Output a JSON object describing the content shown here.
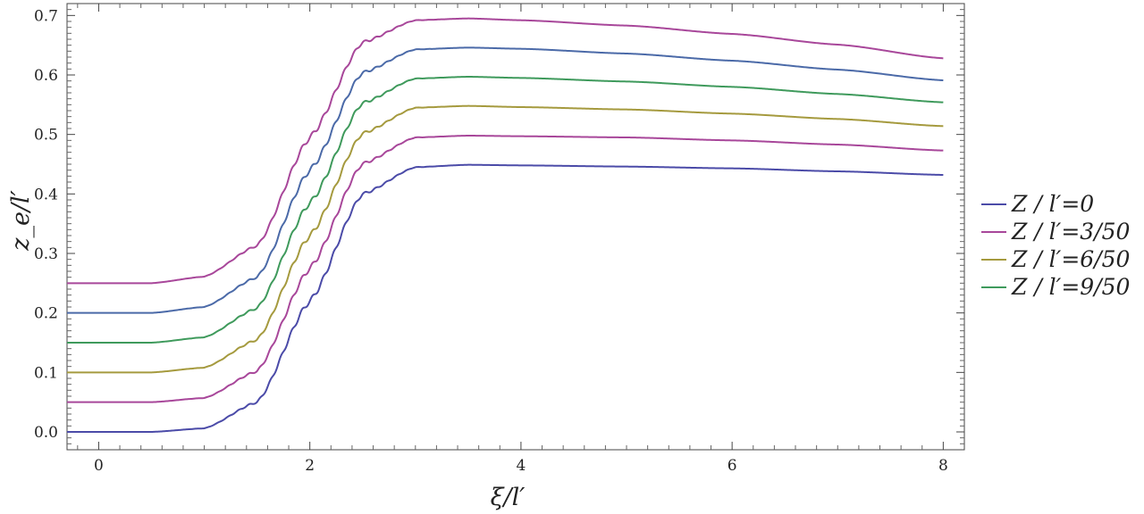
{
  "chart_data": {
    "type": "line",
    "title": "",
    "xlabel": "ξ/l′",
    "ylabel": "z_e/l′",
    "xlim": [
      -0.3,
      8.2
    ],
    "ylim": [
      -0.03,
      0.72
    ],
    "xticks": [
      0,
      2,
      4,
      6,
      8
    ],
    "xtick_labels": [
      "0",
      "2",
      "4",
      "6",
      "8"
    ],
    "yticks": [
      0.0,
      0.1,
      0.2,
      0.3,
      0.4,
      0.5,
      0.6,
      0.7
    ],
    "ytick_labels": [
      "0.0",
      "0.1",
      "0.2",
      "0.3",
      "0.4",
      "0.5",
      "0.6",
      "0.7"
    ],
    "grid": false,
    "legend_position": "right",
    "legend": [
      {
        "label": "Z / l′=0",
        "color": "#4b4ba8"
      },
      {
        "label": "Z / l′=3/50",
        "color": "#a8479a"
      },
      {
        "label": "Z / l′=6/50",
        "color": "#a59a3e"
      },
      {
        "label": "Z / l′=9/50",
        "color": "#3f9a5c"
      }
    ],
    "series": [
      {
        "color": "#4b4ba8",
        "x": [
          -0.3,
          0.5,
          1.0,
          1.5,
          2.0,
          2.5,
          3.0,
          3.5,
          4.0,
          5.0,
          6.0,
          7.0,
          8.0
        ],
        "y": [
          0.0,
          0.0,
          0.006,
          0.05,
          0.22,
          0.4,
          0.445,
          0.449,
          0.448,
          0.446,
          0.443,
          0.438,
          0.432
        ]
      },
      {
        "color": "#a8479a",
        "x": [
          -0.3,
          0.5,
          1.0,
          1.5,
          2.0,
          2.5,
          3.0,
          3.5,
          4.0,
          5.0,
          6.0,
          7.0,
          8.0
        ],
        "y": [
          0.05,
          0.05,
          0.057,
          0.102,
          0.275,
          0.451,
          0.495,
          0.498,
          0.497,
          0.495,
          0.49,
          0.483,
          0.473
        ]
      },
      {
        "color": "#a59a3e",
        "x": [
          -0.3,
          0.5,
          1.0,
          1.5,
          2.0,
          2.5,
          3.0,
          3.5,
          4.0,
          5.0,
          6.0,
          7.0,
          8.0
        ],
        "y": [
          0.1,
          0.1,
          0.108,
          0.155,
          0.33,
          0.502,
          0.545,
          0.548,
          0.546,
          0.542,
          0.535,
          0.526,
          0.514
        ]
      },
      {
        "color": "#3f9a5c",
        "x": [
          -0.3,
          0.5,
          1.0,
          1.5,
          2.0,
          2.5,
          3.0,
          3.5,
          4.0,
          5.0,
          6.0,
          7.0,
          8.0
        ],
        "y": [
          0.15,
          0.15,
          0.159,
          0.208,
          0.385,
          0.553,
          0.594,
          0.597,
          0.595,
          0.589,
          0.58,
          0.568,
          0.554
        ]
      },
      {
        "color": "#4b6aa8",
        "x": [
          -0.3,
          0.5,
          1.0,
          1.5,
          2.0,
          2.5,
          3.0,
          3.5,
          4.0,
          5.0,
          6.0,
          7.0,
          8.0
        ],
        "y": [
          0.2,
          0.2,
          0.21,
          0.26,
          0.44,
          0.604,
          0.643,
          0.646,
          0.644,
          0.636,
          0.624,
          0.609,
          0.591
        ]
      },
      {
        "color": "#a8479a",
        "x": [
          -0.3,
          0.5,
          1.0,
          1.5,
          2.0,
          2.5,
          3.0,
          3.5,
          4.0,
          5.0,
          6.0,
          7.0,
          8.0
        ],
        "y": [
          0.25,
          0.25,
          0.261,
          0.313,
          0.495,
          0.655,
          0.692,
          0.695,
          0.692,
          0.683,
          0.669,
          0.651,
          0.628
        ]
      }
    ]
  }
}
